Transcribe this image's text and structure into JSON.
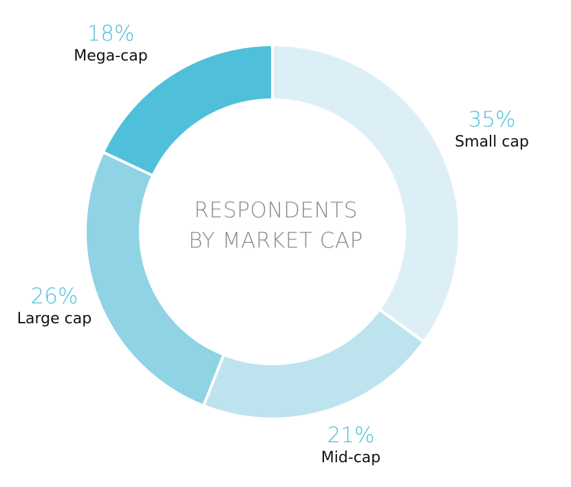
{
  "chart_data": {
    "type": "pie",
    "variant": "donut",
    "title": "RESPONDENTS BY MARKET CAP",
    "title_lines": [
      "RESPONDENTS",
      "BY MARKET CAP"
    ],
    "slices": [
      {
        "label": "Small cap",
        "value": 35,
        "display": "35%",
        "color": "#ddeff6"
      },
      {
        "label": "Mid-cap",
        "value": 21,
        "display": "21%",
        "color": "#bde3ef"
      },
      {
        "label": "Large cap",
        "value": 26,
        "display": "26%",
        "color": "#8fd3e5"
      },
      {
        "label": "Mega-cap",
        "value": 18,
        "display": "18%",
        "color": "#50c0da"
      }
    ],
    "legend": "none",
    "start": "top",
    "direction": "clockwise"
  },
  "colors": {
    "percent_text": "#4ebfda",
    "category_text": "#111111",
    "center_text": "#8a8a8a",
    "separator": "#ffffff"
  }
}
